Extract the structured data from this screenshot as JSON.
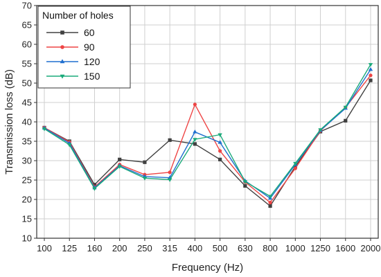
{
  "chart_data": {
    "type": "line",
    "xlabel": "Frequency (Hz)",
    "ylabel": "Transmission loss (dB)",
    "categories": [
      "100",
      "125",
      "160",
      "200",
      "250",
      "315",
      "400",
      "500",
      "630",
      "800",
      "1000",
      "1250",
      "1600",
      "2000"
    ],
    "ylim": [
      10,
      70
    ],
    "yticks": [
      "10",
      "15",
      "20",
      "25",
      "30",
      "35",
      "40",
      "45",
      "50",
      "55",
      "60",
      "65",
      "70"
    ],
    "grid": true,
    "legend": {
      "title": "Number of holes",
      "placement": "top-left"
    },
    "series": [
      {
        "name": "60",
        "color": "#404040",
        "marker": "square",
        "values": [
          38.5,
          35.0,
          23.8,
          30.3,
          29.6,
          35.3,
          34.3,
          30.3,
          23.5,
          18.3,
          28.5,
          37.5,
          40.3,
          50.7
        ]
      },
      {
        "name": "90",
        "color": "#ee4444",
        "marker": "circle",
        "values": [
          38.5,
          34.8,
          23.2,
          29.0,
          26.4,
          27.0,
          44.5,
          32.5,
          24.5,
          19.2,
          28.0,
          37.7,
          43.7,
          52.0
        ]
      },
      {
        "name": "120",
        "color": "#1f6fcf",
        "marker": "triangle-up",
        "values": [
          38.4,
          34.5,
          23.0,
          28.7,
          25.9,
          25.6,
          37.4,
          34.7,
          24.8,
          20.3,
          29.0,
          37.8,
          43.5,
          53.5
        ]
      },
      {
        "name": "150",
        "color": "#1aaa7a",
        "marker": "triangle-down",
        "values": [
          38.2,
          34.1,
          22.8,
          28.5,
          25.5,
          25.1,
          35.5,
          36.7,
          24.6,
          20.8,
          29.3,
          38.0,
          43.8,
          54.8
        ]
      }
    ]
  }
}
